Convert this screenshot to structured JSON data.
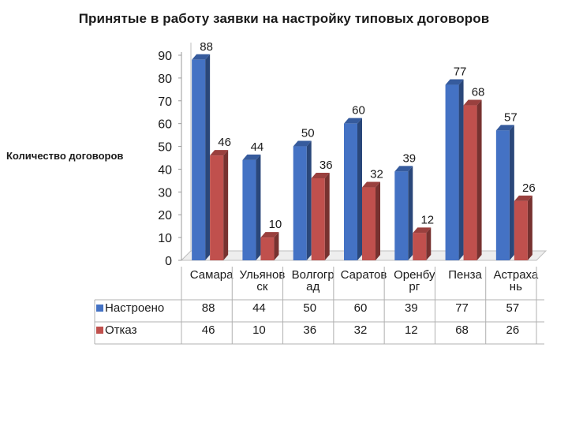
{
  "chart_data": {
    "type": "bar",
    "title": "Принятые в работу заявки на настройку типовых договоров",
    "ylabel": "Количество договоров",
    "xlabel": "",
    "ylim": [
      0,
      90
    ],
    "yticks": [
      0,
      10,
      20,
      30,
      40,
      50,
      60,
      70,
      80,
      90
    ],
    "categories": [
      "Самара",
      "Ульяновск",
      "Волгоград",
      "Саратов",
      "Оренбург",
      "Пенза",
      "Астрахань"
    ],
    "category_labels_wrapped": [
      [
        "Самара"
      ],
      [
        "Ульянов",
        "ск"
      ],
      [
        "Волгогр",
        "ад"
      ],
      [
        "Саратов"
      ],
      [
        "Оренбу",
        "рг"
      ],
      [
        "Пенза"
      ],
      [
        "Астраха",
        "нь"
      ]
    ],
    "series": [
      {
        "name": "Настроено",
        "values": [
          88,
          44,
          50,
          60,
          39,
          77,
          57
        ],
        "color": "#4472C4"
      },
      {
        "name": "Отказ",
        "values": [
          46,
          10,
          36,
          32,
          12,
          68,
          26
        ],
        "color": "#C0504D"
      }
    ],
    "grid": false,
    "legend": "data-table-left",
    "style": "3d-bars"
  }
}
